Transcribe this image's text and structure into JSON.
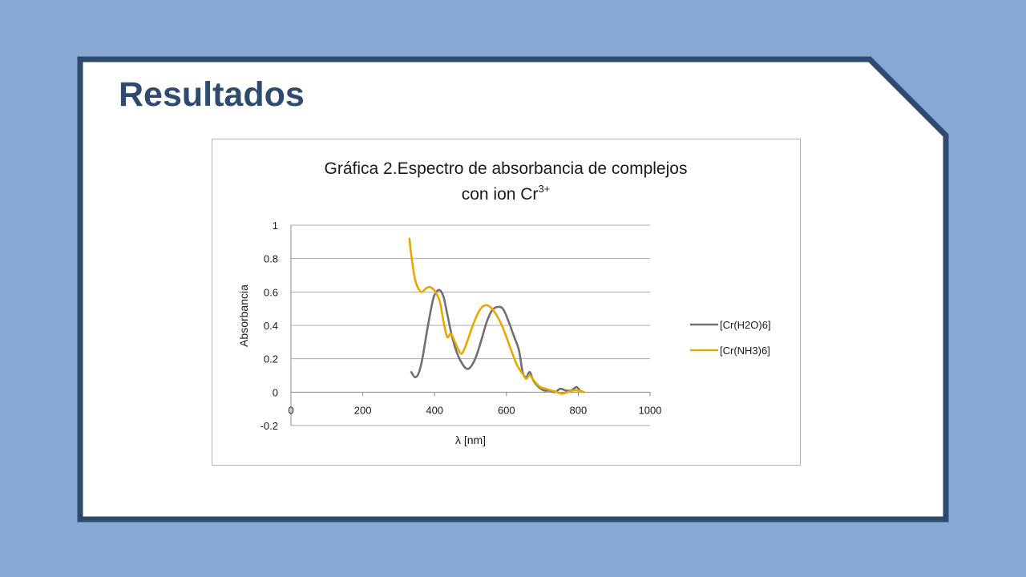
{
  "slide": {
    "title": "Resultados",
    "colors": {
      "background": "#87a8d3",
      "frame": "#2e4a6e",
      "title": "#2e4a6e",
      "card": "#ffffff"
    }
  },
  "chart_data": {
    "type": "line",
    "title_line1": "Gráfica 2.Espectro de absorbancia de complejos",
    "title_line2_prefix": "con ion Cr",
    "title_line2_superscript": "3+",
    "xlabel": "λ [nm]",
    "ylabel": "Absorbancia",
    "xlim": [
      0,
      1000
    ],
    "ylim": [
      -0.2,
      1
    ],
    "xticks": [
      0,
      200,
      400,
      600,
      800,
      1000
    ],
    "yticks": [
      -0.2,
      0,
      0.2,
      0.4,
      0.6,
      0.8,
      1
    ],
    "ytick_labels": [
      "-0.2",
      "0",
      "0.2",
      "0.4",
      "0.6",
      "0.8",
      "1"
    ],
    "grid": "horizontal",
    "legend_position": "right",
    "series": [
      {
        "name": "[Cr(H2O)6]",
        "color": "#707070",
        "x": [
          335,
          345,
          355,
          365,
          380,
          395,
          405,
          415,
          425,
          435,
          450,
          465,
          480,
          490,
          500,
          515,
          530,
          545,
          560,
          575,
          590,
          605,
          620,
          635,
          645,
          655,
          665,
          675,
          690,
          705,
          720,
          735,
          750,
          765,
          780,
          795,
          805,
          815
        ],
        "y": [
          0.12,
          0.09,
          0.11,
          0.19,
          0.38,
          0.55,
          0.6,
          0.61,
          0.57,
          0.47,
          0.32,
          0.22,
          0.16,
          0.14,
          0.15,
          0.21,
          0.31,
          0.42,
          0.49,
          0.51,
          0.5,
          0.43,
          0.34,
          0.25,
          0.12,
          0.09,
          0.12,
          0.07,
          0.03,
          0.01,
          0.01,
          0.0,
          0.02,
          0.01,
          0.01,
          0.03,
          0.01,
          0.0
        ]
      },
      {
        "name": "[Cr(NH3)6]",
        "color": "#e8a800",
        "x": [
          330,
          335,
          345,
          355,
          365,
          375,
          385,
          395,
          405,
          415,
          425,
          435,
          445,
          455,
          465,
          475,
          485,
          495,
          510,
          525,
          540,
          555,
          570,
          585,
          600,
          615,
          630,
          645,
          655,
          665,
          680,
          695,
          710,
          725,
          740,
          755,
          770,
          785,
          800,
          815
        ],
        "y": [
          0.92,
          0.82,
          0.68,
          0.62,
          0.6,
          0.62,
          0.63,
          0.62,
          0.59,
          0.54,
          0.42,
          0.33,
          0.35,
          0.31,
          0.26,
          0.23,
          0.27,
          0.33,
          0.42,
          0.49,
          0.52,
          0.51,
          0.47,
          0.41,
          0.33,
          0.24,
          0.16,
          0.11,
          0.08,
          0.1,
          0.06,
          0.03,
          0.02,
          0.01,
          0.0,
          -0.01,
          0.0,
          0.01,
          0.01,
          0.0
        ]
      }
    ]
  }
}
